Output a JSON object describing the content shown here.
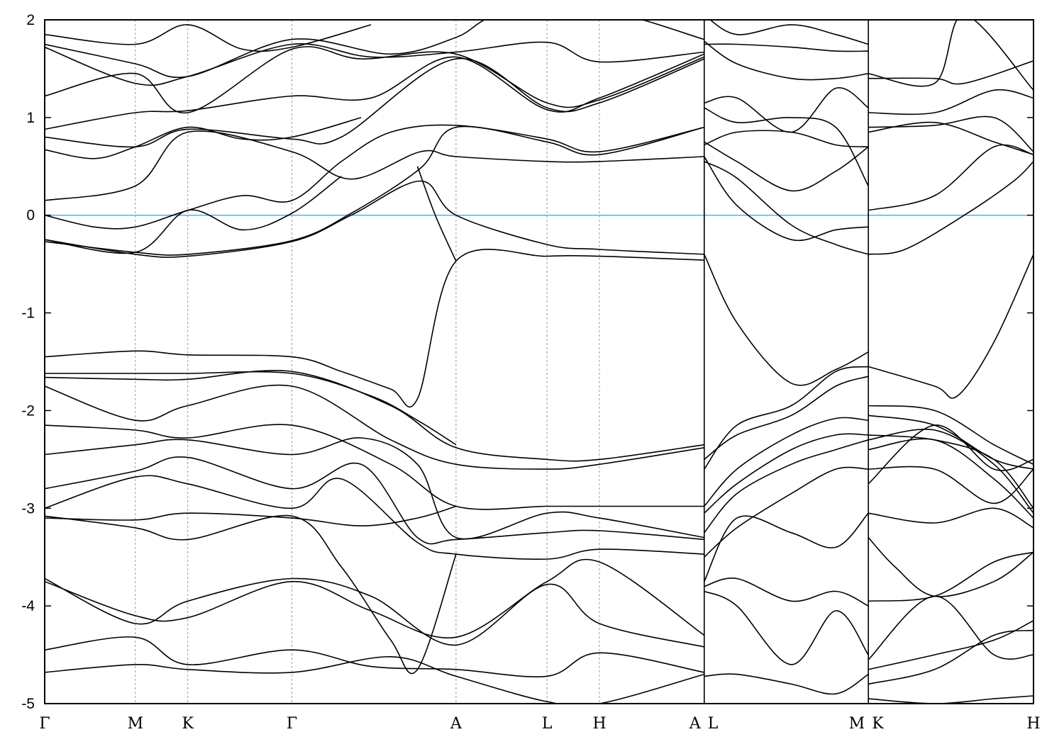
{
  "chart_data": {
    "type": "line",
    "title": "",
    "xlabel": "",
    "ylabel": "",
    "ylim": [
      -5,
      2
    ],
    "yticks": [
      2,
      1,
      0,
      -1,
      -2,
      -3,
      -4,
      -5
    ],
    "ytick_labels": [
      "2",
      "1",
      "0",
      "-1",
      "-2",
      "-3",
      "-4",
      "-5"
    ],
    "grid": "vertical dashed lines at high-symmetry points",
    "legend": "none",
    "reference_line": {
      "y": 0,
      "color": "#5ab4c8"
    },
    "x_domain": [
      0,
      10
    ],
    "kpoints": [
      {
        "label": "Γ",
        "x": 0.0
      },
      {
        "label": "M",
        "x": 0.917
      },
      {
        "label": "K",
        "x": 1.447
      },
      {
        "label": "Γ",
        "x": 2.5
      },
      {
        "label": "A",
        "x": 4.16
      },
      {
        "label": "L",
        "x": 5.08
      },
      {
        "label": "H",
        "x": 5.61
      },
      {
        "label": "A",
        "x": 6.67
      },
      {
        "label": "L",
        "x": 6.67
      },
      {
        "label": "M",
        "x": 8.33
      },
      {
        "label": "K",
        "x": 8.33
      },
      {
        "label": "H",
        "x": 10.0
      }
    ],
    "path_breaks": [
      6.67,
      8.33
    ],
    "series": [
      {
        "x": [
          0.0,
          0.917,
          1.447,
          2.5,
          3.0,
          3.5,
          3.77,
          4.16,
          5.08,
          5.61,
          6.67
        ],
        "y": [
          -1.45,
          -1.39,
          -1.43,
          -1.45,
          -1.6,
          -1.78,
          -1.88,
          -0.47,
          -0.42,
          -0.42,
          -0.46
        ]
      },
      {
        "x": [
          6.67,
          7.0,
          7.55,
          8.0,
          8.33
        ],
        "y": [
          -0.4,
          -1.1,
          -1.72,
          -1.58,
          -1.4
        ]
      },
      {
        "x": [
          8.33,
          9.0,
          9.23,
          9.6,
          10.0
        ],
        "y": [
          -1.55,
          -1.75,
          -1.85,
          -1.3,
          -0.4
        ]
      },
      {
        "x": [
          0.0,
          0.917,
          1.447,
          2.5,
          3.1,
          3.8,
          4.16,
          5.08,
          5.61,
          6.67
        ],
        "y": [
          -0.25,
          -0.4,
          -0.42,
          -0.27,
          0.0,
          0.35,
          0.0,
          -0.3,
          -0.35,
          -0.4
        ]
      },
      {
        "x": [
          3.77,
          3.95,
          4.16
        ],
        "y": [
          0.5,
          0.0,
          -0.47
        ]
      },
      {
        "x": [
          0.0,
          0.917,
          1.447,
          2.5,
          3.1,
          3.8,
          4.16,
          5.08,
          5.61,
          6.67
        ],
        "y": [
          -0.27,
          -0.38,
          -0.4,
          -0.26,
          0.02,
          0.48,
          0.9,
          0.75,
          0.62,
          0.9
        ]
      },
      {
        "x": [
          0.0,
          0.5,
          0.917,
          1.447,
          2.0,
          2.5,
          3.0,
          3.5,
          4.16,
          5.08,
          5.61,
          6.67
        ],
        "y": [
          0.0,
          -0.12,
          -0.12,
          0.05,
          0.2,
          0.15,
          0.55,
          0.85,
          0.92,
          0.78,
          0.65,
          0.9
        ]
      },
      {
        "x": [
          0.0,
          0.917,
          1.447,
          2.0,
          2.5,
          3.0
        ],
        "y": [
          -0.25,
          -0.38,
          0.05,
          -0.15,
          0.02,
          0.4
        ]
      },
      {
        "x": [
          0.0,
          0.917,
          1.447,
          2.5,
          3.1,
          3.8,
          4.16,
          5.08,
          5.61,
          6.67
        ],
        "y": [
          0.15,
          0.3,
          0.85,
          0.65,
          0.37,
          0.65,
          0.6,
          0.55,
          0.55,
          0.6
        ]
      },
      {
        "x": [
          0.0,
          0.5,
          0.917,
          1.447,
          2.0,
          2.5,
          3.2
        ],
        "y": [
          0.67,
          0.58,
          0.7,
          0.9,
          0.78,
          0.8,
          1.0
        ]
      },
      {
        "x": [
          0.0,
          0.917,
          1.447,
          2.5,
          3.0,
          4.16,
          5.08,
          5.61,
          6.67
        ],
        "y": [
          0.8,
          0.7,
          0.88,
          0.78,
          0.8,
          1.6,
          1.1,
          1.15,
          1.6
        ]
      },
      {
        "x": [
          0.0,
          0.917,
          1.447,
          2.5,
          3.3,
          4.16,
          5.08,
          5.61,
          6.67
        ],
        "y": [
          0.88,
          1.05,
          1.07,
          1.22,
          1.2,
          1.62,
          1.08,
          1.2,
          1.65
        ]
      },
      {
        "x": [
          0.0,
          0.917,
          1.447,
          2.5,
          3.2,
          4.16,
          5.08,
          5.61,
          6.67
        ],
        "y": [
          1.22,
          1.45,
          1.05,
          1.7,
          1.6,
          1.65,
          1.15,
          1.18,
          1.62
        ]
      },
      {
        "x": [
          0.0,
          0.917,
          1.447,
          2.5,
          3.3,
          4.16,
          5.08,
          5.61,
          6.67
        ],
        "y": [
          1.72,
          1.35,
          1.42,
          1.75,
          1.62,
          1.67,
          1.77,
          1.57,
          1.67
        ]
      },
      {
        "x": [
          0.0,
          0.917,
          1.447,
          2.5,
          3.5,
          4.16,
          4.6,
          5.61,
          6.67
        ],
        "y": [
          1.75,
          1.55,
          1.42,
          1.8,
          1.65,
          1.82,
          2.05,
          2.1,
          1.8
        ]
      },
      {
        "x": [
          0.0,
          0.917,
          1.447,
          2.0,
          2.5,
          3.3
        ],
        "y": [
          1.85,
          1.75,
          1.95,
          1.7,
          1.72,
          1.95
        ]
      },
      {
        "x": [
          0.0,
          0.917,
          1.447,
          2.5,
          3.3,
          3.77,
          4.16
        ],
        "y": [
          -1.62,
          -1.62,
          -1.62,
          -1.62,
          -1.85,
          -2.1,
          -2.35
        ]
      },
      {
        "x": [
          0.0,
          0.917,
          1.447,
          2.5,
          3.5,
          4.16,
          5.08,
          5.61,
          6.67
        ],
        "y": [
          -1.66,
          -1.68,
          -1.68,
          -1.6,
          -1.95,
          -2.38,
          -2.5,
          -2.5,
          -2.35
        ]
      },
      {
        "x": [
          0.0,
          0.917,
          1.447,
          2.5,
          3.5,
          4.16,
          5.08,
          5.61,
          6.67
        ],
        "y": [
          -1.75,
          -2.1,
          -1.95,
          -1.75,
          -2.3,
          -2.55,
          -2.6,
          -2.55,
          -2.38
        ]
      },
      {
        "x": [
          0.0,
          0.917,
          1.447,
          2.5,
          3.5,
          4.16,
          5.08,
          5.61,
          6.67
        ],
        "y": [
          -2.15,
          -2.2,
          -2.28,
          -2.15,
          -2.55,
          -2.98,
          -2.98,
          -2.98,
          -2.98
        ]
      },
      {
        "x": [
          0.0,
          0.917,
          1.447,
          2.5,
          3.2,
          3.77,
          4.16,
          5.08,
          5.61,
          6.67
        ],
        "y": [
          -2.45,
          -2.35,
          -2.3,
          -2.45,
          -2.28,
          -2.55,
          -3.3,
          -3.05,
          -3.1,
          -3.3
        ]
      },
      {
        "x": [
          0.0,
          0.917,
          1.447,
          2.5,
          3.2,
          3.77,
          4.16,
          5.08,
          5.61,
          6.67
        ],
        "y": [
          -2.8,
          -2.62,
          -2.48,
          -2.8,
          -2.55,
          -3.3,
          -3.32,
          -3.25,
          -3.23,
          -3.32
        ]
      },
      {
        "x": [
          0.0,
          0.917,
          1.447,
          2.5,
          3.0,
          3.77,
          4.16,
          5.08,
          5.61,
          6.67
        ],
        "y": [
          -3.0,
          -2.68,
          -2.75,
          -3.0,
          -2.7,
          -3.35,
          -3.47,
          -3.52,
          -3.42,
          -3.47
        ]
      },
      {
        "x": [
          0.0,
          0.917,
          1.447,
          2.5,
          3.2,
          3.77,
          4.16
        ],
        "y": [
          -3.1,
          -3.12,
          -3.05,
          -3.1,
          -3.18,
          -3.1,
          -2.98
        ]
      },
      {
        "x": [
          0.0,
          0.917,
          1.447,
          2.5,
          3.0,
          3.5,
          3.77,
          4.16
        ],
        "y": [
          -3.08,
          -3.2,
          -3.32,
          -3.08,
          -3.6,
          -4.35,
          -4.65,
          -3.47
        ]
      },
      {
        "x": [
          0.0,
          0.917,
          1.447,
          2.5,
          3.3,
          4.16,
          5.08,
          5.61,
          6.67
        ],
        "y": [
          -3.72,
          -4.18,
          -3.95,
          -3.72,
          -3.9,
          -4.4,
          -3.78,
          -4.18,
          -4.42
        ]
      },
      {
        "x": [
          0.0,
          0.917,
          1.447,
          2.5,
          3.3,
          4.16,
          5.08,
          5.61,
          6.67
        ],
        "y": [
          -3.75,
          -4.1,
          -4.12,
          -3.75,
          -4.05,
          -4.32,
          -3.75,
          -3.55,
          -4.3
        ]
      },
      {
        "x": [
          0.0,
          0.917,
          1.447,
          2.5,
          3.3,
          4.16,
          5.08,
          5.61,
          6.67
        ],
        "y": [
          -4.45,
          -4.32,
          -4.6,
          -4.45,
          -4.62,
          -4.65,
          -4.72,
          -4.48,
          -4.68
        ]
      },
      {
        "x": [
          0.0,
          0.917,
          1.447,
          2.5,
          3.5,
          4.16,
          5.08,
          5.61,
          6.67
        ],
        "y": [
          -4.68,
          -4.6,
          -4.65,
          -4.68,
          -4.52,
          -4.72,
          -4.98,
          -5.0,
          -4.7
        ]
      },
      {
        "x": [
          6.67,
          7.0,
          7.55,
          8.0,
          8.33
        ],
        "y": [
          -2.6,
          -2.15,
          -1.95,
          -1.6,
          -1.55
        ]
      },
      {
        "x": [
          6.67,
          7.0,
          7.55,
          8.0,
          8.33
        ],
        "y": [
          -2.5,
          -2.25,
          -2.05,
          -1.75,
          -1.65
        ]
      },
      {
        "x": [
          6.67,
          7.0,
          7.55,
          8.0,
          8.33
        ],
        "y": [
          -2.98,
          -2.6,
          -2.25,
          -2.08,
          -2.1
        ]
      },
      {
        "x": [
          6.67,
          7.0,
          7.55,
          8.0,
          8.33
        ],
        "y": [
          -3.05,
          -2.75,
          -2.4,
          -2.25,
          -2.25
        ]
      },
      {
        "x": [
          6.67,
          7.0,
          7.55,
          8.0,
          8.33
        ],
        "y": [
          -3.25,
          -2.85,
          -2.55,
          -2.4,
          -2.3
        ]
      },
      {
        "x": [
          6.67,
          7.0,
          7.55,
          8.0,
          8.33
        ],
        "y": [
          -3.5,
          -3.2,
          -2.85,
          -2.6,
          -2.6
        ]
      },
      {
        "x": [
          6.67,
          7.0,
          7.55,
          8.0,
          8.33
        ],
        "y": [
          -3.75,
          -3.1,
          -3.25,
          -3.4,
          -3.05
        ]
      },
      {
        "x": [
          6.67,
          7.0,
          7.55,
          8.0,
          8.33
        ],
        "y": [
          -3.85,
          -4.0,
          -4.6,
          -4.05,
          -4.5
        ]
      },
      {
        "x": [
          6.67,
          7.0,
          7.55,
          8.0,
          8.33
        ],
        "y": [
          -3.8,
          -3.72,
          -3.95,
          -3.85,
          -4.0
        ]
      },
      {
        "x": [
          6.67,
          7.0,
          7.55,
          8.0,
          8.33
        ],
        "y": [
          -4.72,
          -4.7,
          -4.8,
          -4.9,
          -4.7
        ]
      },
      {
        "x": [
          6.67,
          7.0,
          7.55,
          8.0,
          8.33
        ],
        "y": [
          0.55,
          0.38,
          -0.1,
          -0.3,
          -0.4
        ]
      },
      {
        "x": [
          6.67,
          7.0,
          7.55,
          8.0,
          8.33
        ],
        "y": [
          0.6,
          0.1,
          -0.25,
          -0.15,
          -0.12
        ]
      },
      {
        "x": [
          6.67,
          7.0,
          7.55,
          8.0,
          8.33
        ],
        "y": [
          0.75,
          0.55,
          0.25,
          0.45,
          0.7
        ]
      },
      {
        "x": [
          6.67,
          7.0,
          7.55,
          8.0,
          8.33
        ],
        "y": [
          0.72,
          0.85,
          0.85,
          0.72,
          0.7
        ]
      },
      {
        "x": [
          6.67,
          7.0,
          7.55,
          8.0,
          8.33
        ],
        "y": [
          1.1,
          0.95,
          1.0,
          0.9,
          0.3
        ]
      },
      {
        "x": [
          6.67,
          7.0,
          7.55,
          8.0,
          8.33
        ],
        "y": [
          1.15,
          1.2,
          0.85,
          1.3,
          1.1
        ]
      },
      {
        "x": [
          6.67,
          7.0,
          7.55,
          8.0,
          8.33
        ],
        "y": [
          1.78,
          1.55,
          1.4,
          1.4,
          1.45
        ]
      },
      {
        "x": [
          6.67,
          7.0,
          7.55,
          8.0,
          8.33
        ],
        "y": [
          1.75,
          1.75,
          1.72,
          1.68,
          1.68
        ]
      },
      {
        "x": [
          6.67,
          7.0,
          7.55,
          8.0,
          8.33
        ],
        "y": [
          2.05,
          1.85,
          1.95,
          1.85,
          1.75
        ]
      },
      {
        "x": [
          8.33,
          9.0,
          9.6,
          10.0
        ],
        "y": [
          0.05,
          0.2,
          0.7,
          0.62
        ]
      },
      {
        "x": [
          8.33,
          8.7,
          9.3,
          9.8,
          10.0
        ],
        "y": [
          -0.4,
          -0.35,
          0.0,
          0.35,
          0.55
        ]
      },
      {
        "x": [
          8.33,
          9.0,
          9.6,
          10.0
        ],
        "y": [
          0.85,
          0.95,
          0.75,
          0.62
        ]
      },
      {
        "x": [
          8.33,
          9.0,
          9.6,
          10.0
        ],
        "y": [
          0.9,
          0.92,
          1.0,
          0.65
        ]
      },
      {
        "x": [
          8.33,
          9.0,
          9.6,
          10.0
        ],
        "y": [
          1.05,
          1.05,
          1.28,
          1.2
        ]
      },
      {
        "x": [
          8.33,
          9.0,
          9.3,
          10.0
        ],
        "y": [
          1.4,
          1.4,
          1.35,
          1.58
        ]
      },
      {
        "x": [
          8.33,
          9.0,
          9.3,
          10.0
        ],
        "y": [
          1.45,
          1.35,
          2.05,
          1.28
        ]
      },
      {
        "x": [
          8.33,
          9.0,
          9.6,
          10.0
        ],
        "y": [
          -2.25,
          -2.3,
          -2.5,
          -3.0
        ]
      },
      {
        "x": [
          8.33,
          9.0,
          9.6,
          10.0
        ],
        "y": [
          -2.3,
          -2.2,
          -2.55,
          -3.05
        ]
      },
      {
        "x": [
          8.33,
          9.0,
          9.6,
          10.0
        ],
        "y": [
          -2.4,
          -2.3,
          -2.7,
          -3.1
        ]
      },
      {
        "x": [
          8.33,
          9.0,
          9.6,
          10.0
        ],
        "y": [
          -2.6,
          -2.6,
          -2.95,
          -2.6
        ]
      },
      {
        "x": [
          8.33,
          9.0,
          9.6,
          10.0
        ],
        "y": [
          -2.75,
          -2.15,
          -2.6,
          -2.5
        ]
      },
      {
        "x": [
          8.33,
          9.0,
          9.6,
          10.0
        ],
        "y": [
          -2.05,
          -2.15,
          -2.5,
          -2.6
        ]
      },
      {
        "x": [
          8.33,
          9.0,
          9.6,
          10.0
        ],
        "y": [
          -1.95,
          -2.0,
          -2.35,
          -2.55
        ]
      },
      {
        "x": [
          8.33,
          9.0,
          9.6,
          10.0
        ],
        "y": [
          -3.05,
          -3.15,
          -3.0,
          -3.2
        ]
      },
      {
        "x": [
          8.33,
          8.6,
          9.0,
          9.6,
          10.0
        ],
        "y": [
          -3.3,
          -3.6,
          -3.9,
          -3.75,
          -3.45
        ]
      },
      {
        "x": [
          8.33,
          9.0,
          9.6,
          10.0
        ],
        "y": [
          -3.95,
          -3.9,
          -3.55,
          -3.45
        ]
      },
      {
        "x": [
          8.33,
          9.0,
          9.6,
          10.0
        ],
        "y": [
          -4.55,
          -3.9,
          -4.5,
          -4.5
        ]
      },
      {
        "x": [
          8.33,
          9.0,
          9.6,
          10.0
        ],
        "y": [
          -4.65,
          -4.5,
          -4.35,
          -4.15
        ]
      },
      {
        "x": [
          8.33,
          9.0,
          9.6,
          10.0
        ],
        "y": [
          -4.8,
          -4.65,
          -4.3,
          -4.25
        ]
      },
      {
        "x": [
          8.33,
          9.0,
          9.6,
          10.0
        ],
        "y": [
          -4.95,
          -5.0,
          -4.95,
          -4.92
        ]
      }
    ]
  }
}
